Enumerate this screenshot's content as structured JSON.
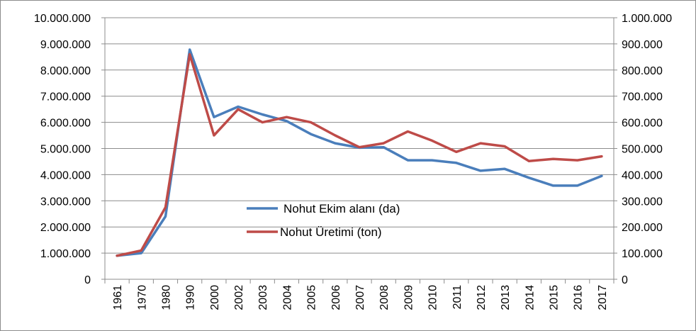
{
  "chart_data": {
    "type": "line",
    "categories": [
      "1961",
      "1970",
      "1980",
      "1990",
      "2000",
      "2002",
      "2003",
      "2004",
      "2005",
      "2006",
      "2007",
      "2008",
      "2009",
      "2010",
      "2011",
      "2012",
      "2013",
      "2014",
      "2015",
      "2016",
      "2017"
    ],
    "series": [
      {
        "name": "Nohut Ekim alanı (da)",
        "axis": "left",
        "color": "#4a7ebb",
        "values": [
          900000,
          1000000,
          2400000,
          8780000,
          6200000,
          6600000,
          6300000,
          6050000,
          5550000,
          5200000,
          5030000,
          5050000,
          4550000,
          4550000,
          4450000,
          4150000,
          4220000,
          3880000,
          3580000,
          3580000,
          3950000
        ]
      },
      {
        "name": "Nohut Üretimi (ton)",
        "axis": "right",
        "color": "#be4b48",
        "values": [
          90000,
          110000,
          275000,
          860000,
          550000,
          650000,
          600000,
          620000,
          600000,
          550000,
          505000,
          520000,
          565000,
          530000,
          487000,
          520000,
          508000,
          452000,
          460000,
          455000,
          470000
        ]
      }
    ],
    "y_left": {
      "ylim": [
        0,
        10000000
      ],
      "ticks": [
        "0",
        "1.000.000",
        "2.000.000",
        "3.000.000",
        "4.000.000",
        "5.000.000",
        "6.000.000",
        "7.000.000",
        "8.000.000",
        "9.000.000",
        "10.000.000"
      ]
    },
    "y_right": {
      "ylim": [
        0,
        1000000
      ],
      "ticks": [
        "0",
        "100.000",
        "200.000",
        "300.000",
        "400.000",
        "500.000",
        "600.000",
        "700.000",
        "800.000",
        "900.000",
        "1.000.000"
      ]
    },
    "grid": true,
    "legend_position": "center"
  }
}
